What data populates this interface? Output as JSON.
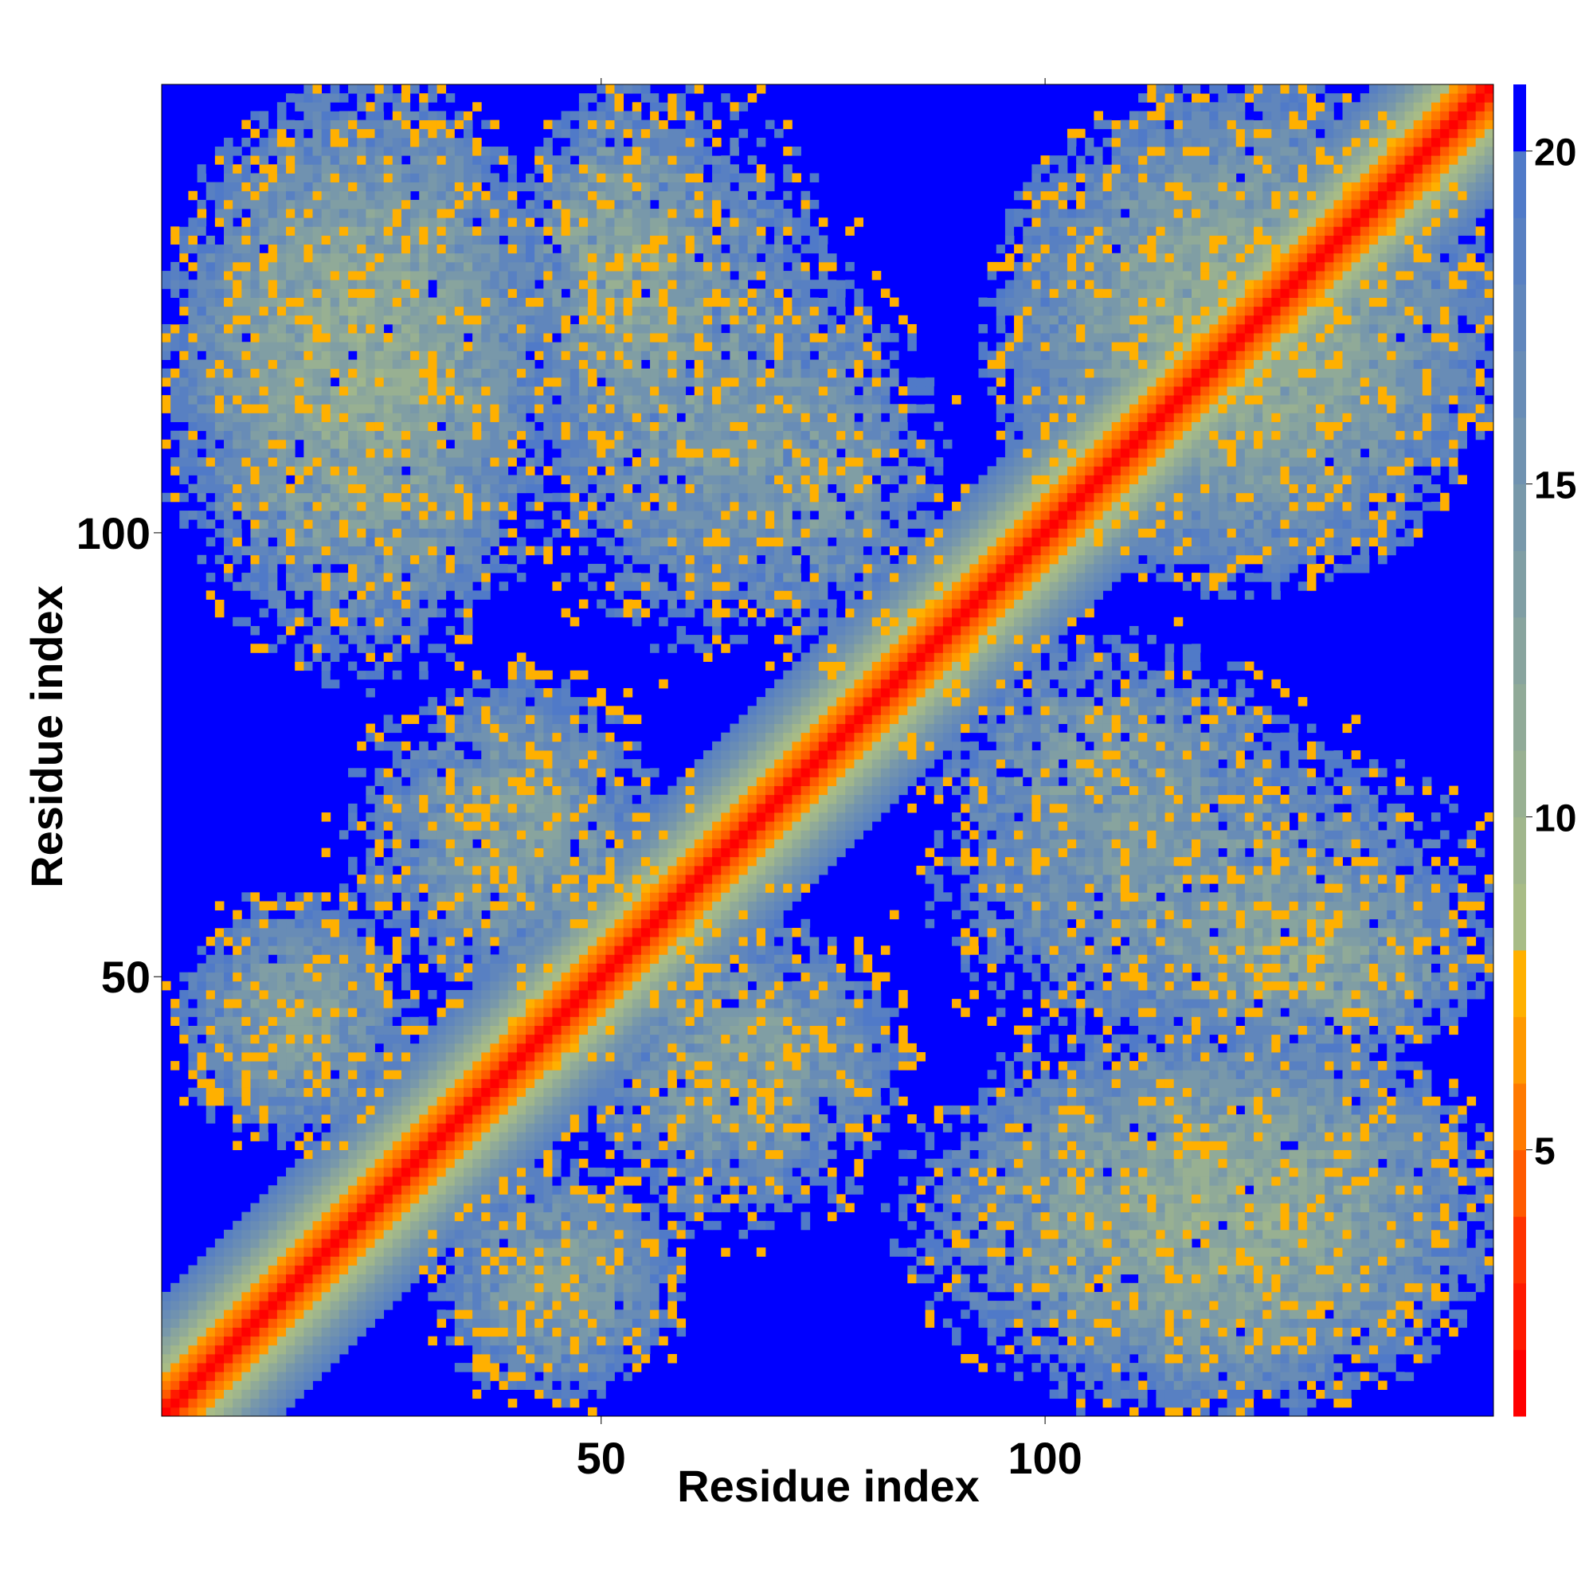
{
  "chart_data": {
    "type": "heatmap",
    "title": "",
    "xlabel": "Residue index",
    "ylabel": "Residue index",
    "n_residues": 150,
    "xlim": [
      1,
      150
    ],
    "ylim": [
      1,
      150
    ],
    "x_ticks": [
      50,
      100
    ],
    "y_ticks": [
      50,
      100
    ],
    "colorbar": {
      "ticks": [
        5,
        10,
        15,
        20
      ],
      "range": [
        1,
        21
      ],
      "levels": [
        {
          "upto": 2,
          "color": "#ff0000"
        },
        {
          "upto": 3,
          "color": "#ff1a00"
        },
        {
          "upto": 4,
          "color": "#ff3300"
        },
        {
          "upto": 5,
          "color": "#ff5a00"
        },
        {
          "upto": 6,
          "color": "#ff7a00"
        },
        {
          "upto": 7,
          "color": "#ff9900"
        },
        {
          "upto": 8,
          "color": "#ffb000"
        },
        {
          "upto": 9,
          "color": "#a8bc86"
        },
        {
          "upto": 10,
          "color": "#a0b68c"
        },
        {
          "upto": 11,
          "color": "#98b092"
        },
        {
          "upto": 12,
          "color": "#90aa98"
        },
        {
          "upto": 13,
          "color": "#88a49e"
        },
        {
          "upto": 14,
          "color": "#809ea4"
        },
        {
          "upto": 15,
          "color": "#7898aa"
        },
        {
          "upto": 16,
          "color": "#7092b0"
        },
        {
          "upto": 17,
          "color": "#688cb6"
        },
        {
          "upto": 18,
          "color": "#6086bc"
        },
        {
          "upto": 19,
          "color": "#5880c2"
        },
        {
          "upto": 20,
          "color": "#507ac8"
        },
        {
          "upto": 21,
          "color": "#0000ff"
        }
      ]
    },
    "background_color": "#0000ff",
    "diagonal": {
      "start": 1,
      "end": 150,
      "core_width": 2,
      "band_width": 10
    },
    "contact_regions": [
      {
        "x": [
          2,
          45
        ],
        "y": [
          95,
          150
        ],
        "density": "high",
        "note": "upper-left block"
      },
      {
        "x": [
          40,
          80
        ],
        "y": [
          85,
          150
        ],
        "density": "medium",
        "note": "antidiagonal arm upper"
      },
      {
        "x": [
          95,
          150
        ],
        "y": [
          95,
          150
        ],
        "density": "high",
        "note": "upper-right block near diagonal"
      },
      {
        "x": [
          2,
          30
        ],
        "y": [
          30,
          60
        ],
        "density": "medium",
        "note": "left middle block"
      },
      {
        "x": [
          20,
          60
        ],
        "y": [
          45,
          85
        ],
        "density": "medium",
        "note": "antidiagonal arm lower-left"
      },
      {
        "x": [
          50,
          85
        ],
        "y": [
          25,
          55
        ],
        "density": "medium",
        "note": "antidiagonal arm lower-right"
      },
      {
        "x": [
          85,
          130
        ],
        "y": [
          55,
          90
        ],
        "density": "medium",
        "note": "right middle arm"
      },
      {
        "x": [
          110,
          150
        ],
        "y": [
          40,
          65
        ],
        "density": "high",
        "note": "right middle block"
      },
      {
        "x": [
          85,
          150
        ],
        "y": [
          1,
          45
        ],
        "density": "high",
        "note": "lower-right block"
      },
      {
        "x": [
          30,
          60
        ],
        "y": [
          1,
          30
        ],
        "density": "medium",
        "note": "lower-middle block"
      }
    ]
  }
}
